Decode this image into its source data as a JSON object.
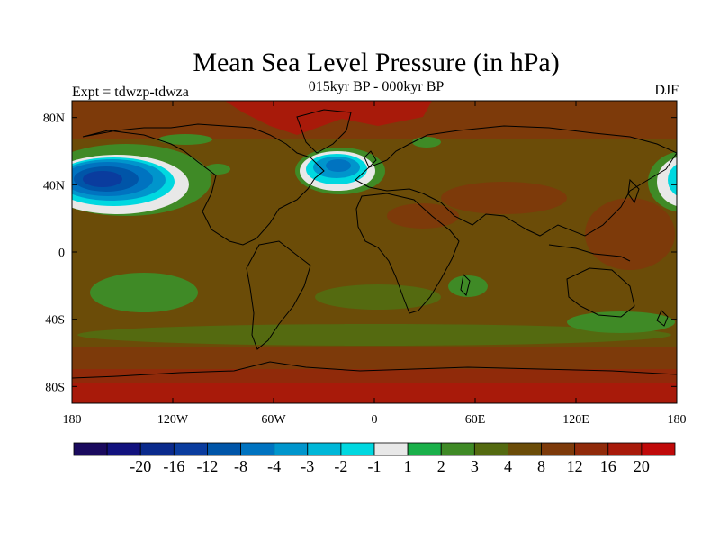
{
  "title": "Mean Sea Level Pressure (in hPa)",
  "subtitle": "015kyr BP - 000kyr BP",
  "left_label": "Expt = tdwzp-tdwza",
  "right_label": "DJF",
  "map": {
    "lon_range": [
      -180,
      180
    ],
    "lat_range": [
      -90,
      90
    ],
    "x_ticks": [
      {
        "lon": -180,
        "label": "180"
      },
      {
        "lon": -120,
        "label": "120W"
      },
      {
        "lon": -60,
        "label": "60W"
      },
      {
        "lon": 0,
        "label": "0"
      },
      {
        "lon": 60,
        "label": "60E"
      },
      {
        "lon": 120,
        "label": "120E"
      },
      {
        "lon": 180,
        "label": "180"
      }
    ],
    "y_ticks": [
      {
        "lat": 80,
        "label": "80N"
      },
      {
        "lat": 40,
        "label": "40N"
      },
      {
        "lat": 0,
        "label": "0"
      },
      {
        "lat": -40,
        "label": "40S"
      },
      {
        "lat": -80,
        "label": "80S"
      }
    ],
    "background_level_color": "#6b4c08"
  },
  "colorbar": {
    "colors": [
      "#1a0a5e",
      "#12127e",
      "#0a2a8c",
      "#0a3c9e",
      "#0055a8",
      "#0073c0",
      "#0095cc",
      "#00b7d8",
      "#00d8e0",
      "#e8e8e8",
      "#1ab04a",
      "#3f8a26",
      "#546a10",
      "#6b4c08",
      "#7d3a0a",
      "#902a0a",
      "#a81a0a",
      "#c00a0a"
    ],
    "labels": [
      "-20",
      "-16",
      "-12",
      "-8",
      "-4",
      "-3",
      "-2",
      "-1",
      "1",
      "2",
      "3",
      "4",
      "8",
      "12",
      "16",
      "20"
    ]
  }
}
